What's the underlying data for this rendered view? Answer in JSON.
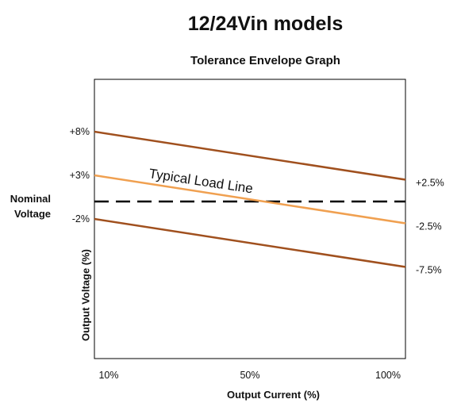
{
  "chart_data": {
    "type": "line",
    "title": "12/24Vin models",
    "subtitle": "Tolerance Envelope Graph",
    "xlabel": "Output Current (%)",
    "ylabel": "Output Voltage (%)",
    "nominal_label": [
      "Nominal",
      "Voltage"
    ],
    "x_ticks": [
      "10%",
      "50%",
      "100%"
    ],
    "x": [
      10,
      100
    ],
    "left_labels": [
      "+8%",
      "+3%",
      "-2%"
    ],
    "right_labels": [
      "+2.5%",
      "-2.5%",
      "-7.5%"
    ],
    "series": [
      {
        "values": [
          8,
          2.5
        ],
        "color": "#a0501e"
      },
      {
        "values": [
          3,
          -2.5
        ],
        "color": "#f0a050",
        "annotation": "Typical Load Line"
      },
      {
        "values": [
          -2,
          -7.5
        ],
        "color": "#a0501e"
      }
    ],
    "nominal": {
      "value": 0,
      "style": "dashed",
      "color": "#000000"
    },
    "ylim": [
      -18,
      14
    ],
    "xlim": [
      10,
      100
    ],
    "grid": false
  }
}
